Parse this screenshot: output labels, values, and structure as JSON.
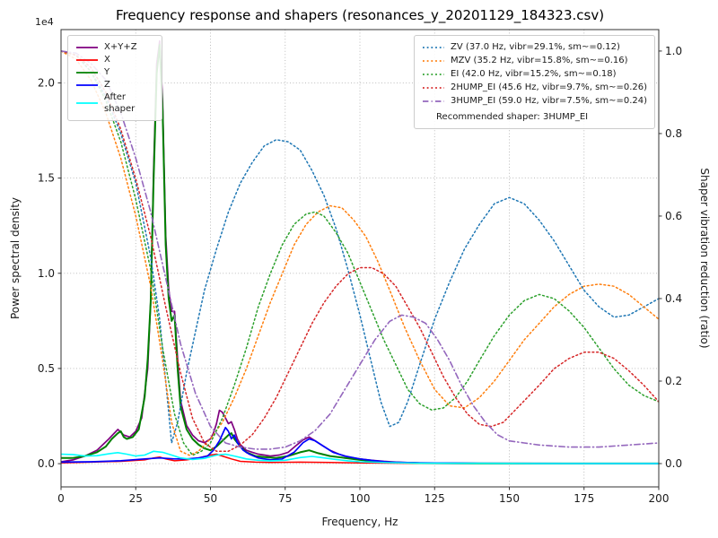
{
  "legends": {
    "psd": {
      "items": [
        {
          "label": "X+Y+Z",
          "color": "#800080",
          "style": "solid"
        },
        {
          "label": "X",
          "color": "#ff0000",
          "style": "solid"
        },
        {
          "label": "Y",
          "color": "#008000",
          "style": "solid"
        },
        {
          "label": "Z",
          "color": "#0000ff",
          "style": "solid"
        },
        {
          "label": "After shaper",
          "color": "#00ffff",
          "style": "solid"
        }
      ]
    },
    "shapers": {
      "items": [
        {
          "label": "ZV (37.0 Hz, vibr=29.1%, sm~=0.12)",
          "color": "#1f77b4",
          "style": "dotted"
        },
        {
          "label": "MZV (35.2 Hz, vibr=15.8%, sm~=0.16)",
          "color": "#ff7f0e",
          "style": "dotted"
        },
        {
          "label": "EI (42.0 Hz, vibr=15.2%, sm~=0.18)",
          "color": "#2ca02c",
          "style": "dotted"
        },
        {
          "label": "2HUMP_EI (45.6 Hz, vibr=9.7%, sm~=0.26)",
          "color": "#d62728",
          "style": "dotted"
        },
        {
          "label": "3HUMP_EI (59.0 Hz, vibr=7.5%, sm~=0.24)",
          "color": "#9467bd",
          "style": "dashdot"
        }
      ],
      "note": "Recommended shaper: 3HUMP_EI"
    }
  },
  "chart_data": {
    "type": "line",
    "title": "Frequency response and shapers (resonances_y_20201129_184323.csv)",
    "xlabel": "Frequency, Hz",
    "ylabel_left": "Power spectral density",
    "ylabel_right": "Shaper vibration reduction (ratio)",
    "y_left_scale": "1e4",
    "y_left_multiplier": 10000,
    "recommended_shaper": "3HUMP_EI",
    "xlim": [
      0,
      200
    ],
    "ylim_left": [
      -0.122,
      2.28
    ],
    "ylim_right": [
      -0.0565,
      1.052
    ],
    "x_ticks": [
      0,
      25,
      50,
      75,
      100,
      125,
      150,
      175,
      200
    ],
    "x_tick_labels": [
      "0",
      "25",
      "50",
      "75",
      "100",
      "125",
      "150",
      "175",
      "200"
    ],
    "y_left_ticks": [
      0,
      0.5,
      1.0,
      1.5,
      2.0
    ],
    "y_left_tick_labels": [
      "0.0",
      "0.5",
      "1.0",
      "1.5",
      "2.0"
    ],
    "y_right_ticks": [
      0,
      0.2,
      0.4,
      0.6,
      0.8,
      1.0
    ],
    "y_right_tick_labels": [
      "0.0",
      "0.2",
      "0.4",
      "0.6",
      "0.8",
      "1.0"
    ],
    "grid": true,
    "series": [
      {
        "name": "X+Y+Z",
        "axis": "left",
        "color": "#800080",
        "style": "solid",
        "width": 1.7,
        "x": [
          0,
          4,
          8,
          12,
          16,
          19,
          21,
          23,
          25,
          27,
          29,
          30,
          31,
          32,
          33,
          34,
          35,
          36,
          37,
          38,
          39,
          40,
          42,
          44,
          46,
          48,
          50,
          51,
          52,
          53,
          54,
          55,
          56,
          57,
          58,
          59,
          60,
          62,
          64,
          66,
          68,
          70,
          73,
          76,
          79,
          81,
          83,
          85,
          87,
          90,
          93,
          96,
          100,
          104,
          108,
          112,
          116,
          120,
          130,
          140,
          160,
          180,
          200
        ],
        "y": [
          0.01,
          0.02,
          0.04,
          0.07,
          0.13,
          0.18,
          0.15,
          0.14,
          0.17,
          0.24,
          0.5,
          0.85,
          1.55,
          2.1,
          2.22,
          1.9,
          1.2,
          0.92,
          0.8,
          0.8,
          0.55,
          0.33,
          0.2,
          0.15,
          0.12,
          0.11,
          0.13,
          0.16,
          0.21,
          0.28,
          0.27,
          0.24,
          0.21,
          0.22,
          0.18,
          0.13,
          0.1,
          0.07,
          0.06,
          0.05,
          0.045,
          0.04,
          0.045,
          0.06,
          0.1,
          0.125,
          0.14,
          0.12,
          0.1,
          0.07,
          0.05,
          0.035,
          0.025,
          0.018,
          0.012,
          0.008,
          0.006,
          0.004,
          0.003,
          0.002,
          0.001,
          0.001,
          0.001
        ]
      },
      {
        "name": "X",
        "axis": "left",
        "color": "#ff0000",
        "style": "solid",
        "width": 1.5,
        "x": [
          0,
          10,
          20,
          28,
          31,
          33,
          35,
          38,
          42,
          46,
          50,
          52,
          54,
          57,
          60,
          65,
          70,
          80,
          90,
          100,
          120,
          200
        ],
        "y": [
          0.004,
          0.008,
          0.012,
          0.02,
          0.03,
          0.035,
          0.025,
          0.015,
          0.02,
          0.03,
          0.045,
          0.05,
          0.04,
          0.025,
          0.012,
          0.008,
          0.006,
          0.008,
          0.006,
          0.004,
          0.002,
          0.001
        ]
      },
      {
        "name": "Y",
        "axis": "left",
        "color": "#008000",
        "style": "solid",
        "width": 2,
        "x": [
          0,
          4,
          8,
          12,
          15,
          17,
          19,
          20,
          21,
          22,
          24,
          26,
          28,
          29,
          30,
          31,
          32,
          33,
          34,
          35,
          36,
          37,
          38,
          39,
          40,
          42,
          44,
          46,
          48,
          50,
          52,
          54,
          56,
          57,
          58,
          60,
          62,
          65,
          68,
          72,
          76,
          80,
          83,
          86,
          90,
          95,
          100,
          105,
          110,
          120,
          140,
          200
        ],
        "y": [
          0.03,
          0.03,
          0.04,
          0.06,
          0.09,
          0.13,
          0.16,
          0.17,
          0.14,
          0.13,
          0.14,
          0.18,
          0.35,
          0.55,
          0.85,
          1.5,
          2.05,
          2.2,
          1.85,
          1.15,
          0.87,
          0.75,
          0.78,
          0.5,
          0.3,
          0.18,
          0.13,
          0.1,
          0.08,
          0.07,
          0.09,
          0.12,
          0.15,
          0.16,
          0.13,
          0.09,
          0.06,
          0.04,
          0.035,
          0.03,
          0.04,
          0.06,
          0.07,
          0.055,
          0.04,
          0.03,
          0.02,
          0.012,
          0.007,
          0.003,
          0.001,
          0.001
        ]
      },
      {
        "name": "Z",
        "axis": "left",
        "color": "#0000ff",
        "style": "solid",
        "width": 1.7,
        "x": [
          0,
          10,
          20,
          28,
          33,
          38,
          42,
          46,
          49,
          51,
          53,
          55,
          56,
          57,
          58,
          59,
          61,
          63,
          66,
          70,
          74,
          78,
          81,
          83,
          85,
          88,
          91,
          95,
          100,
          105,
          110,
          120,
          140,
          200
        ],
        "y": [
          0.008,
          0.01,
          0.015,
          0.025,
          0.03,
          0.025,
          0.025,
          0.03,
          0.04,
          0.07,
          0.12,
          0.19,
          0.17,
          0.13,
          0.15,
          0.11,
          0.07,
          0.05,
          0.03,
          0.02,
          0.025,
          0.06,
          0.11,
          0.13,
          0.12,
          0.09,
          0.06,
          0.04,
          0.025,
          0.015,
          0.008,
          0.004,
          0.002,
          0.001
        ]
      },
      {
        "name": "After shaper",
        "axis": "left",
        "color": "#00ffff",
        "style": "solid",
        "width": 1.6,
        "x": [
          0,
          4,
          8,
          12,
          16,
          19,
          22,
          25,
          28,
          31,
          34,
          37,
          40,
          44,
          48,
          52,
          55,
          58,
          62,
          66,
          70,
          75,
          80,
          84,
          88,
          92,
          96,
          100,
          110,
          120,
          140,
          160,
          180,
          200
        ],
        "y": [
          0.05,
          0.048,
          0.04,
          0.042,
          0.052,
          0.058,
          0.05,
          0.04,
          0.045,
          0.065,
          0.06,
          0.045,
          0.03,
          0.022,
          0.028,
          0.045,
          0.05,
          0.04,
          0.025,
          0.018,
          0.015,
          0.018,
          0.032,
          0.038,
          0.03,
          0.022,
          0.015,
          0.01,
          0.005,
          0.003,
          0.002,
          0.001,
          0.001,
          0.001
        ]
      },
      {
        "name": "ZV",
        "axis": "right",
        "color": "#1f77b4",
        "style": "dotted",
        "width": 1.5,
        "x": [
          0,
          5,
          10,
          15,
          20,
          25,
          30,
          33,
          35,
          37,
          39,
          42,
          45,
          48,
          52,
          56,
          60,
          64,
          68,
          72,
          76,
          80,
          84,
          88,
          92,
          96,
          100,
          104,
          107,
          110,
          113,
          116,
          120,
          125,
          130,
          135,
          140,
          145,
          150,
          155,
          160,
          165,
          170,
          175,
          180,
          185,
          190,
          195,
          200
        ],
        "y": [
          1.0,
          0.99,
          0.95,
          0.89,
          0.8,
          0.68,
          0.5,
          0.35,
          0.2,
          0.05,
          0.1,
          0.22,
          0.32,
          0.42,
          0.52,
          0.61,
          0.68,
          0.73,
          0.77,
          0.785,
          0.78,
          0.76,
          0.71,
          0.65,
          0.57,
          0.47,
          0.36,
          0.24,
          0.15,
          0.09,
          0.1,
          0.15,
          0.24,
          0.35,
          0.44,
          0.52,
          0.58,
          0.63,
          0.645,
          0.63,
          0.59,
          0.54,
          0.48,
          0.42,
          0.38,
          0.355,
          0.36,
          0.38,
          0.4
        ]
      },
      {
        "name": "MZV",
        "axis": "right",
        "color": "#ff7f0e",
        "style": "dotted",
        "width": 1.5,
        "x": [
          0,
          5,
          10,
          15,
          20,
          25,
          30,
          34,
          37,
          40,
          43,
          46,
          50,
          54,
          58,
          62,
          66,
          70,
          74,
          78,
          82,
          86,
          90,
          94,
          98,
          102,
          106,
          110,
          115,
          120,
          125,
          130,
          135,
          140,
          145,
          150,
          155,
          160,
          165,
          170,
          175,
          180,
          185,
          190,
          195,
          200
        ],
        "y": [
          1.0,
          0.98,
          0.93,
          0.85,
          0.74,
          0.6,
          0.43,
          0.25,
          0.1,
          0.03,
          0.02,
          0.03,
          0.06,
          0.1,
          0.16,
          0.23,
          0.31,
          0.39,
          0.46,
          0.53,
          0.58,
          0.61,
          0.625,
          0.62,
          0.59,
          0.55,
          0.49,
          0.42,
          0.33,
          0.25,
          0.18,
          0.14,
          0.135,
          0.16,
          0.2,
          0.25,
          0.3,
          0.34,
          0.38,
          0.41,
          0.43,
          0.435,
          0.43,
          0.41,
          0.38,
          0.35
        ]
      },
      {
        "name": "EI",
        "axis": "right",
        "color": "#2ca02c",
        "style": "dotted",
        "width": 1.5,
        "x": [
          0,
          5,
          10,
          15,
          20,
          25,
          30,
          34,
          38,
          41,
          44,
          47,
          50,
          54,
          58,
          62,
          66,
          70,
          74,
          78,
          82,
          85,
          88,
          92,
          96,
          100,
          104,
          108,
          112,
          116,
          120,
          124,
          128,
          132,
          136,
          140,
          145,
          150,
          155,
          160,
          165,
          170,
          175,
          180,
          185,
          190,
          195,
          200
        ],
        "y": [
          1.0,
          0.99,
          0.95,
          0.88,
          0.78,
          0.64,
          0.47,
          0.28,
          0.12,
          0.05,
          0.02,
          0.03,
          0.05,
          0.11,
          0.19,
          0.28,
          0.38,
          0.46,
          0.53,
          0.58,
          0.605,
          0.61,
          0.6,
          0.56,
          0.51,
          0.44,
          0.37,
          0.3,
          0.24,
          0.18,
          0.145,
          0.13,
          0.135,
          0.16,
          0.2,
          0.25,
          0.31,
          0.36,
          0.395,
          0.41,
          0.4,
          0.37,
          0.33,
          0.28,
          0.23,
          0.19,
          0.165,
          0.15
        ]
      },
      {
        "name": "2HUMP_EI",
        "axis": "right",
        "color": "#d62728",
        "style": "dotted",
        "width": 1.5,
        "x": [
          0,
          5,
          10,
          15,
          20,
          25,
          30,
          35,
          40,
          44,
          48,
          52,
          56,
          60,
          64,
          68,
          72,
          76,
          80,
          84,
          88,
          92,
          96,
          100,
          104,
          108,
          112,
          116,
          120,
          124,
          128,
          132,
          136,
          140,
          144,
          148,
          152,
          156,
          160,
          165,
          170,
          175,
          180,
          185,
          190,
          195,
          200
        ],
        "y": [
          1.0,
          0.99,
          0.96,
          0.9,
          0.81,
          0.69,
          0.55,
          0.38,
          0.22,
          0.11,
          0.05,
          0.03,
          0.03,
          0.045,
          0.07,
          0.11,
          0.16,
          0.22,
          0.28,
          0.34,
          0.39,
          0.43,
          0.46,
          0.475,
          0.475,
          0.46,
          0.43,
          0.38,
          0.33,
          0.27,
          0.21,
          0.16,
          0.12,
          0.095,
          0.09,
          0.1,
          0.13,
          0.16,
          0.19,
          0.23,
          0.255,
          0.27,
          0.27,
          0.255,
          0.225,
          0.19,
          0.15
        ]
      },
      {
        "name": "3HUMP_EI",
        "axis": "right",
        "color": "#9467bd",
        "style": "dashdot",
        "width": 1.6,
        "x": [
          0,
          5,
          10,
          15,
          20,
          25,
          30,
          35,
          40,
          45,
          50,
          55,
          60,
          65,
          70,
          75,
          80,
          85,
          90,
          95,
          100,
          105,
          110,
          114,
          118,
          122,
          126,
          130,
          134,
          138,
          142,
          146,
          150,
          155,
          160,
          170,
          180,
          190,
          200
        ],
        "y": [
          1.0,
          0.995,
          0.97,
          0.93,
          0.85,
          0.74,
          0.61,
          0.45,
          0.29,
          0.17,
          0.09,
          0.05,
          0.04,
          0.035,
          0.035,
          0.04,
          0.055,
          0.08,
          0.12,
          0.18,
          0.24,
          0.3,
          0.345,
          0.36,
          0.355,
          0.34,
          0.3,
          0.25,
          0.19,
          0.14,
          0.1,
          0.07,
          0.055,
          0.05,
          0.045,
          0.04,
          0.04,
          0.045,
          0.05
        ]
      }
    ]
  }
}
